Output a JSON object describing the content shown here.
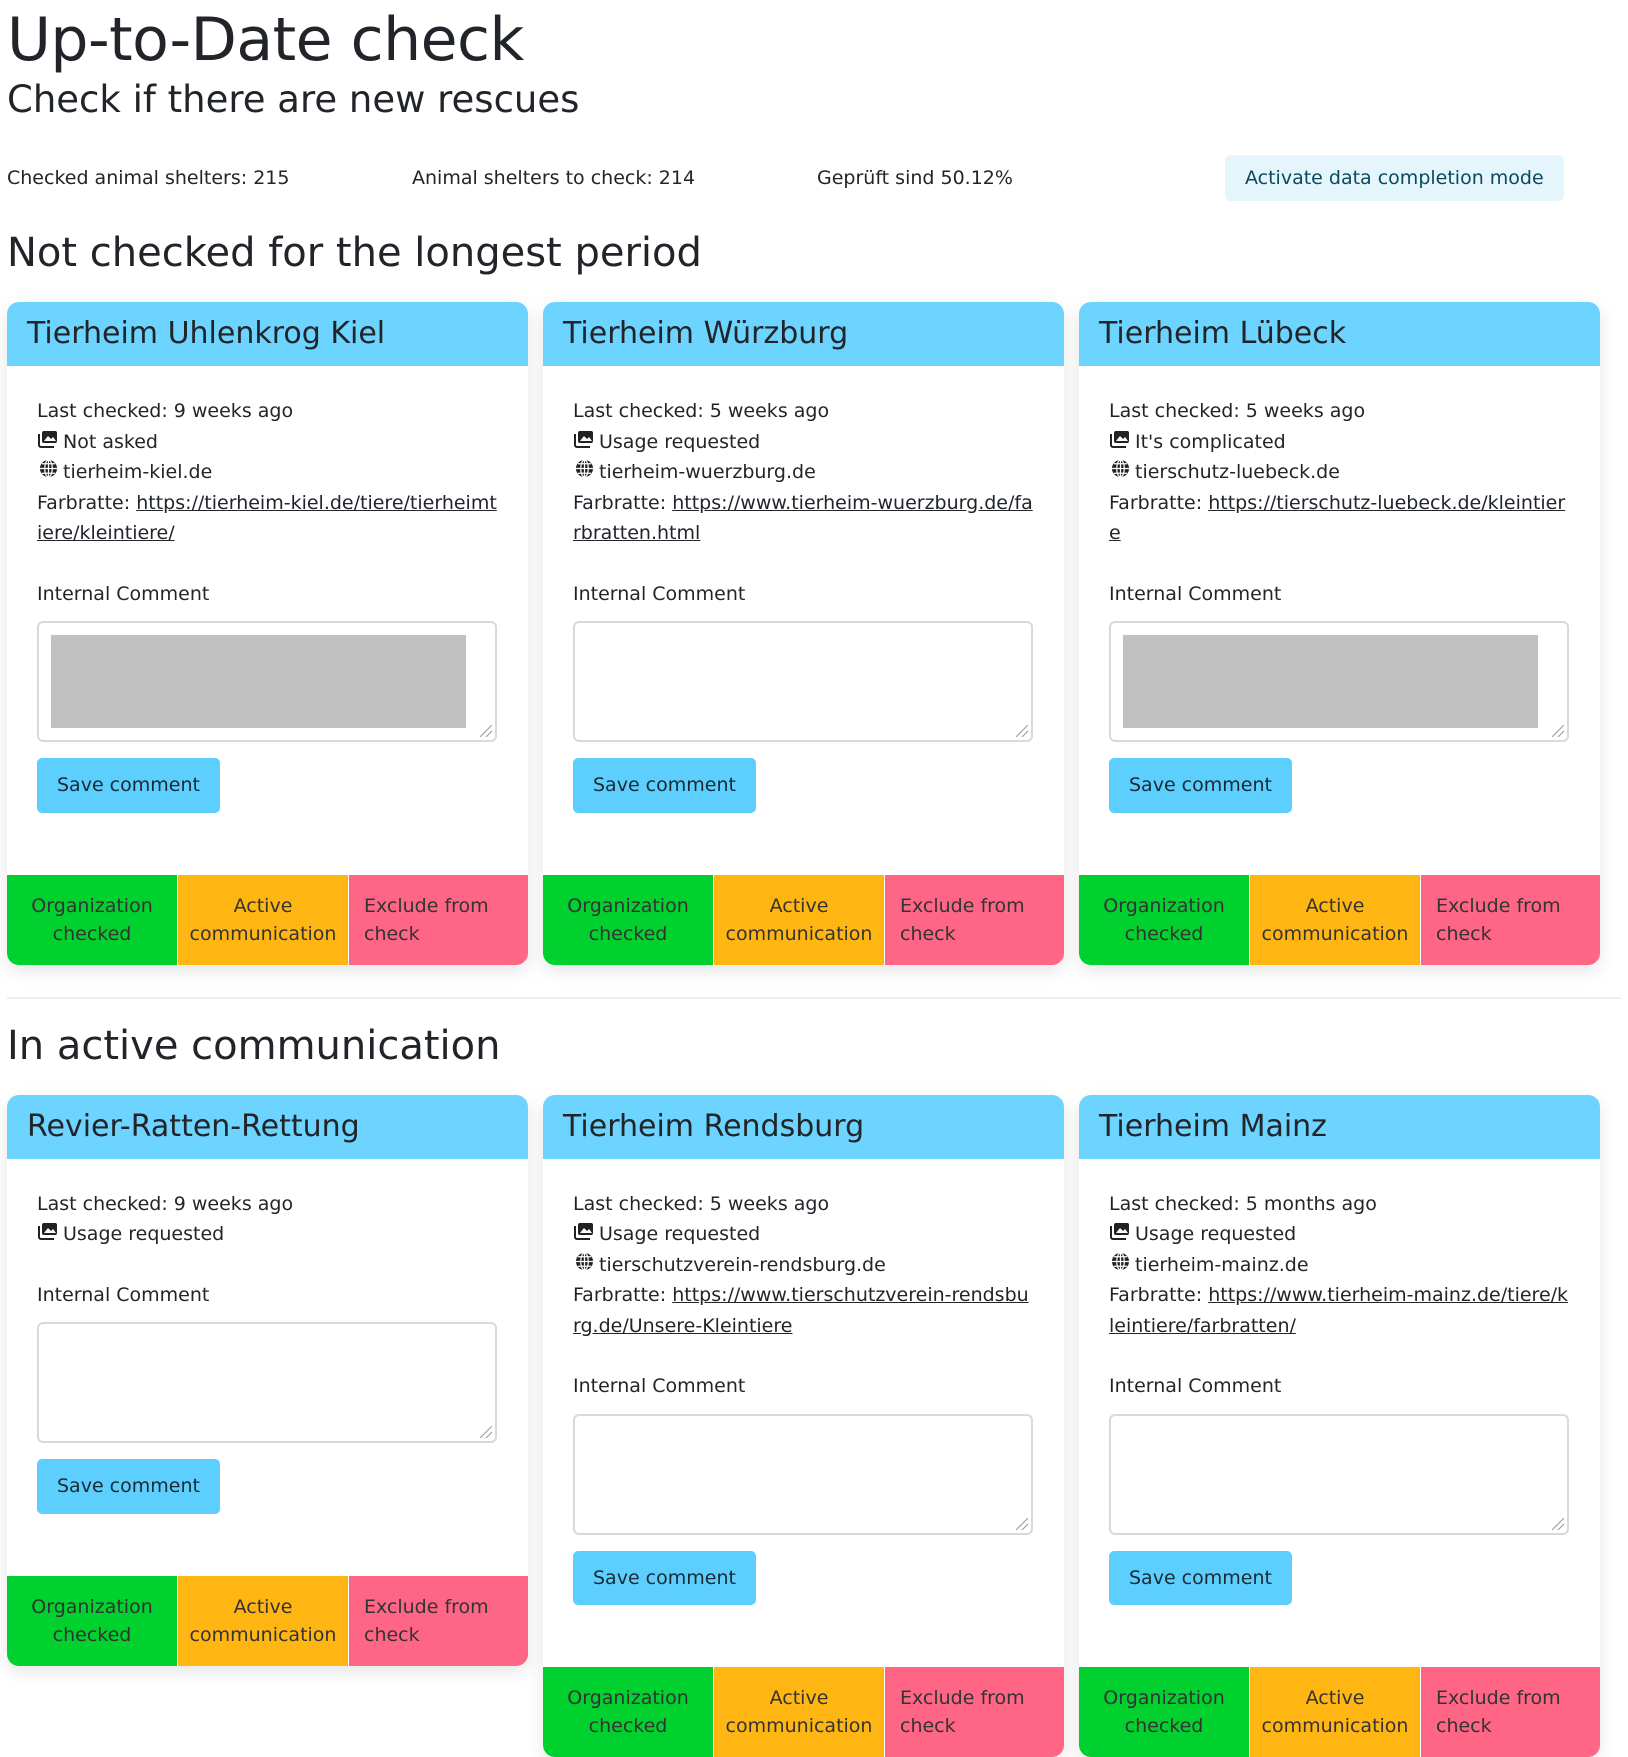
{
  "header": {
    "title": "Up-to-Date check",
    "subtitle": "Check if there are new rescues"
  },
  "stats": {
    "checked": "Checked animal shelters: 215",
    "to_check": "Animal shelters to check: 214",
    "percent": "Geprüft sind 50.12%",
    "mode_button": "Activate data completion mode"
  },
  "labels": {
    "last_checked": "Last checked:",
    "farbratte": "Farbratte:",
    "internal_comment": "Internal Comment",
    "save": "Save comment",
    "org_checked": "Organization checked",
    "active": "Active communication",
    "exclude": "Exclude from check"
  },
  "colors": {
    "header": "#6dd3ff",
    "green": "#00d12e",
    "orange": "#ffb613",
    "pink": "#ff6584"
  },
  "sections": [
    {
      "title": "Not checked for the longest period",
      "cards": [
        {
          "name": "Tierheim Uhlenkrog Kiel",
          "last": "9 weeks ago",
          "usage": "Not asked",
          "site": "tierheim-kiel.de",
          "farbratte": "https://tierheim-kiel.de/tiere/tierheimtiere/kleintiere/"
        },
        {
          "name": "Tierheim Würzburg",
          "last": "5 weeks ago",
          "usage": "Usage requested",
          "site": "tierheim-wuerzburg.de",
          "farbratte": "https://www.tierheim-wuerzburg.de/farbratten.html"
        },
        {
          "name": "Tierheim Lübeck",
          "last": "5 weeks ago",
          "usage": "It's complicated",
          "site": "tierschutz-luebeck.de",
          "farbratte": "https://tierschutz-luebeck.de/kleintiere"
        }
      ]
    },
    {
      "title": "In active communication",
      "cards": [
        {
          "name": "Revier-Ratten-Rettung",
          "last": "9 weeks ago",
          "usage": "Usage requested"
        },
        {
          "name": "Tierheim Rendsburg",
          "last": "5 weeks ago",
          "usage": "Usage requested",
          "site": "tierschutzverein-rendsburg.de",
          "farbratte": "https://www.tierschutzverein-rendsburg.de/Unsere-Kleintiere"
        },
        {
          "name": "Tierheim Mainz",
          "last": "5 months ago",
          "usage": "Usage requested",
          "site": "tierheim-mainz.de",
          "farbratte": "https://www.tierheim-mainz.de/tiere/kleintiere/farbratten/"
        }
      ]
    }
  ]
}
